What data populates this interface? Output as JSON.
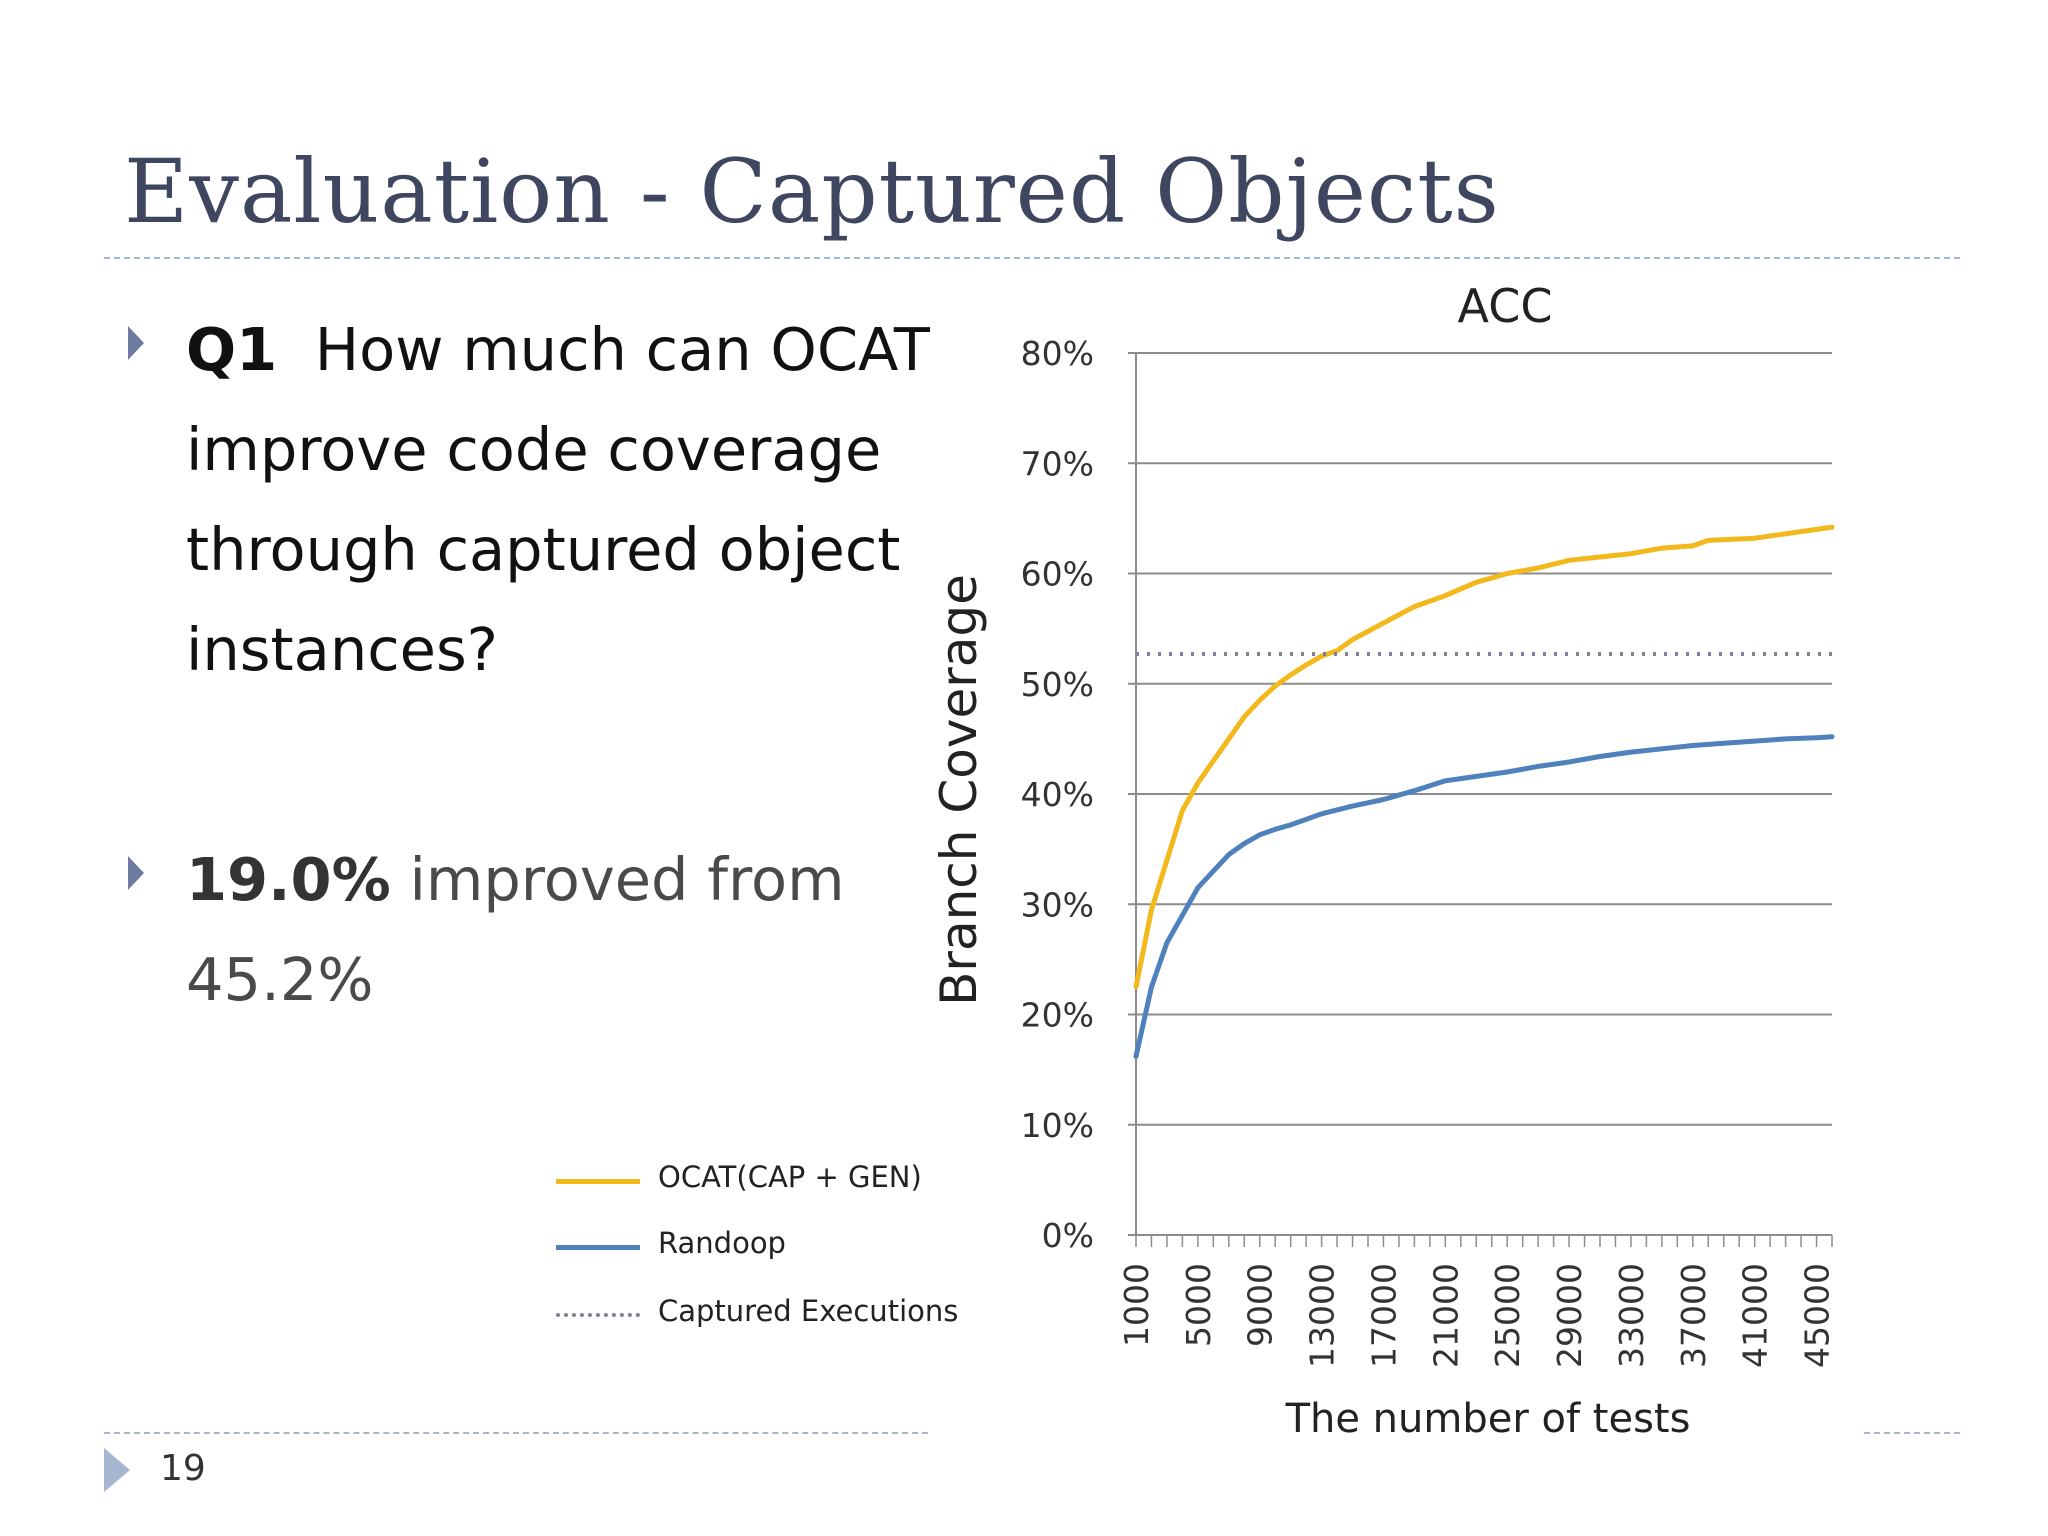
{
  "slide": {
    "title": "Evaluation - Captured Objects",
    "bullets": [
      {
        "strong": "Q1",
        "text": "How much can OCAT improve code coverage through captured object instances?"
      },
      {
        "strong": "19.0%",
        "text": "improved from 45.2%"
      }
    ],
    "page_number": "19"
  },
  "colors": {
    "ocat": "#f2b81c",
    "randoop": "#4f81bd",
    "captured": "#7d7f99",
    "title": "#3e4660",
    "rule": "#a7b6d0",
    "bullet": "#6f7aa0"
  },
  "legend": [
    {
      "series": "ocat",
      "label": "OCAT(CAP + GEN)",
      "style": "solid"
    },
    {
      "series": "randoop",
      "label": "Randoop",
      "style": "solid"
    },
    {
      "series": "captured",
      "label": "Captured Executions",
      "style": "dotted"
    }
  ],
  "chart_data": {
    "type": "line",
    "title": "ACC",
    "xlabel": "The number of tests",
    "ylabel": "Branch Coverage",
    "xlim": [
      1000,
      46000
    ],
    "ylim": [
      0,
      80
    ],
    "y_ticks": [
      0,
      10,
      20,
      30,
      40,
      50,
      60,
      70,
      80
    ],
    "y_tick_labels": [
      "0%",
      "10%",
      "20%",
      "30%",
      "40%",
      "50%",
      "60%",
      "70%",
      "80%"
    ],
    "x_tick_labels": [
      "1000",
      "5000",
      "9000",
      "13000",
      "17000",
      "21000",
      "25000",
      "29000",
      "33000",
      "37000",
      "41000",
      "45000"
    ],
    "x_ticks": [
      1000,
      5000,
      9000,
      13000,
      17000,
      21000,
      25000,
      29000,
      33000,
      37000,
      41000,
      45000
    ],
    "grid": true,
    "legend_position": "bottom-left outside",
    "series": [
      {
        "key": "ocat",
        "name": "OCAT(CAP + GEN)",
        "style": "solid",
        "x": [
          1000,
          2000,
          3000,
          4000,
          5000,
          6000,
          7000,
          8000,
          9000,
          10000,
          11000,
          12000,
          13000,
          14000,
          15000,
          17000,
          19000,
          21000,
          23000,
          25000,
          27000,
          29000,
          31000,
          33000,
          35000,
          37000,
          38000,
          41000,
          43000,
          45000,
          46000
        ],
        "y": [
          22.5,
          29.5,
          34,
          38.5,
          41,
          43,
          45,
          47,
          48.5,
          49.8,
          50.8,
          51.7,
          52.5,
          53.0,
          54.0,
          55.5,
          57.0,
          58.0,
          59.2,
          60.0,
          60.5,
          61.2,
          61.5,
          61.8,
          62.3,
          62.5,
          63.0,
          63.2,
          63.6,
          64.0,
          64.2
        ]
      },
      {
        "key": "randoop",
        "name": "Randoop",
        "style": "solid",
        "x": [
          1000,
          2000,
          3000,
          4000,
          5000,
          6000,
          7000,
          8000,
          9000,
          10000,
          11000,
          13000,
          15000,
          17000,
          19000,
          21000,
          23000,
          25000,
          27000,
          29000,
          31000,
          33000,
          35000,
          37000,
          39000,
          41000,
          43000,
          45000,
          46000
        ],
        "y": [
          16.2,
          22.5,
          26.5,
          29,
          31.5,
          33,
          34.5,
          35.5,
          36.3,
          36.8,
          37.2,
          38.2,
          38.9,
          39.5,
          40.3,
          41.2,
          41.6,
          42.0,
          42.5,
          42.9,
          43.4,
          43.8,
          44.1,
          44.4,
          44.6,
          44.8,
          45.0,
          45.1,
          45.2
        ]
      },
      {
        "key": "captured",
        "name": "Captured Executions",
        "style": "dotted",
        "x": [
          1000,
          46000
        ],
        "y": [
          52.7,
          52.7
        ]
      }
    ]
  }
}
